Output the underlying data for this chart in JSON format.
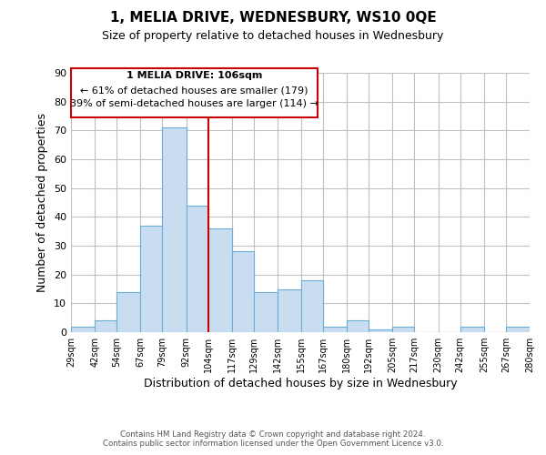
{
  "title": "1, MELIA DRIVE, WEDNESBURY, WS10 0QE",
  "subtitle": "Size of property relative to detached houses in Wednesbury",
  "xlabel": "Distribution of detached houses by size in Wednesbury",
  "ylabel": "Number of detached properties",
  "bar_color": "#c9ddf0",
  "bar_edge_color": "#6aaed6",
  "bins": [
    29,
    42,
    54,
    67,
    79,
    92,
    104,
    117,
    129,
    142,
    155,
    167,
    180,
    192,
    205,
    217,
    230,
    242,
    255,
    267,
    280
  ],
  "counts": [
    2,
    4,
    14,
    37,
    71,
    44,
    36,
    28,
    14,
    15,
    18,
    2,
    4,
    1,
    2,
    0,
    0,
    2,
    0,
    2
  ],
  "vline_x": 104,
  "vline_color": "#cc0000",
  "xlim": [
    29,
    280
  ],
  "ylim": [
    0,
    90
  ],
  "yticks": [
    0,
    10,
    20,
    30,
    40,
    50,
    60,
    70,
    80,
    90
  ],
  "tick_labels": [
    "29sqm",
    "42sqm",
    "54sqm",
    "67sqm",
    "79sqm",
    "92sqm",
    "104sqm",
    "117sqm",
    "129sqm",
    "142sqm",
    "155sqm",
    "167sqm",
    "180sqm",
    "192sqm",
    "205sqm",
    "217sqm",
    "230sqm",
    "242sqm",
    "255sqm",
    "267sqm",
    "280sqm"
  ],
  "annotation_title": "1 MELIA DRIVE: 106sqm",
  "annotation_line1": "← 61% of detached houses are smaller (179)",
  "annotation_line2": "39% of semi-detached houses are larger (114) →",
  "footer1": "Contains HM Land Registry data © Crown copyright and database right 2024.",
  "footer2": "Contains public sector information licensed under the Open Government Licence v3.0.",
  "background_color": "#ffffff",
  "grid_color": "#c0c0c0"
}
